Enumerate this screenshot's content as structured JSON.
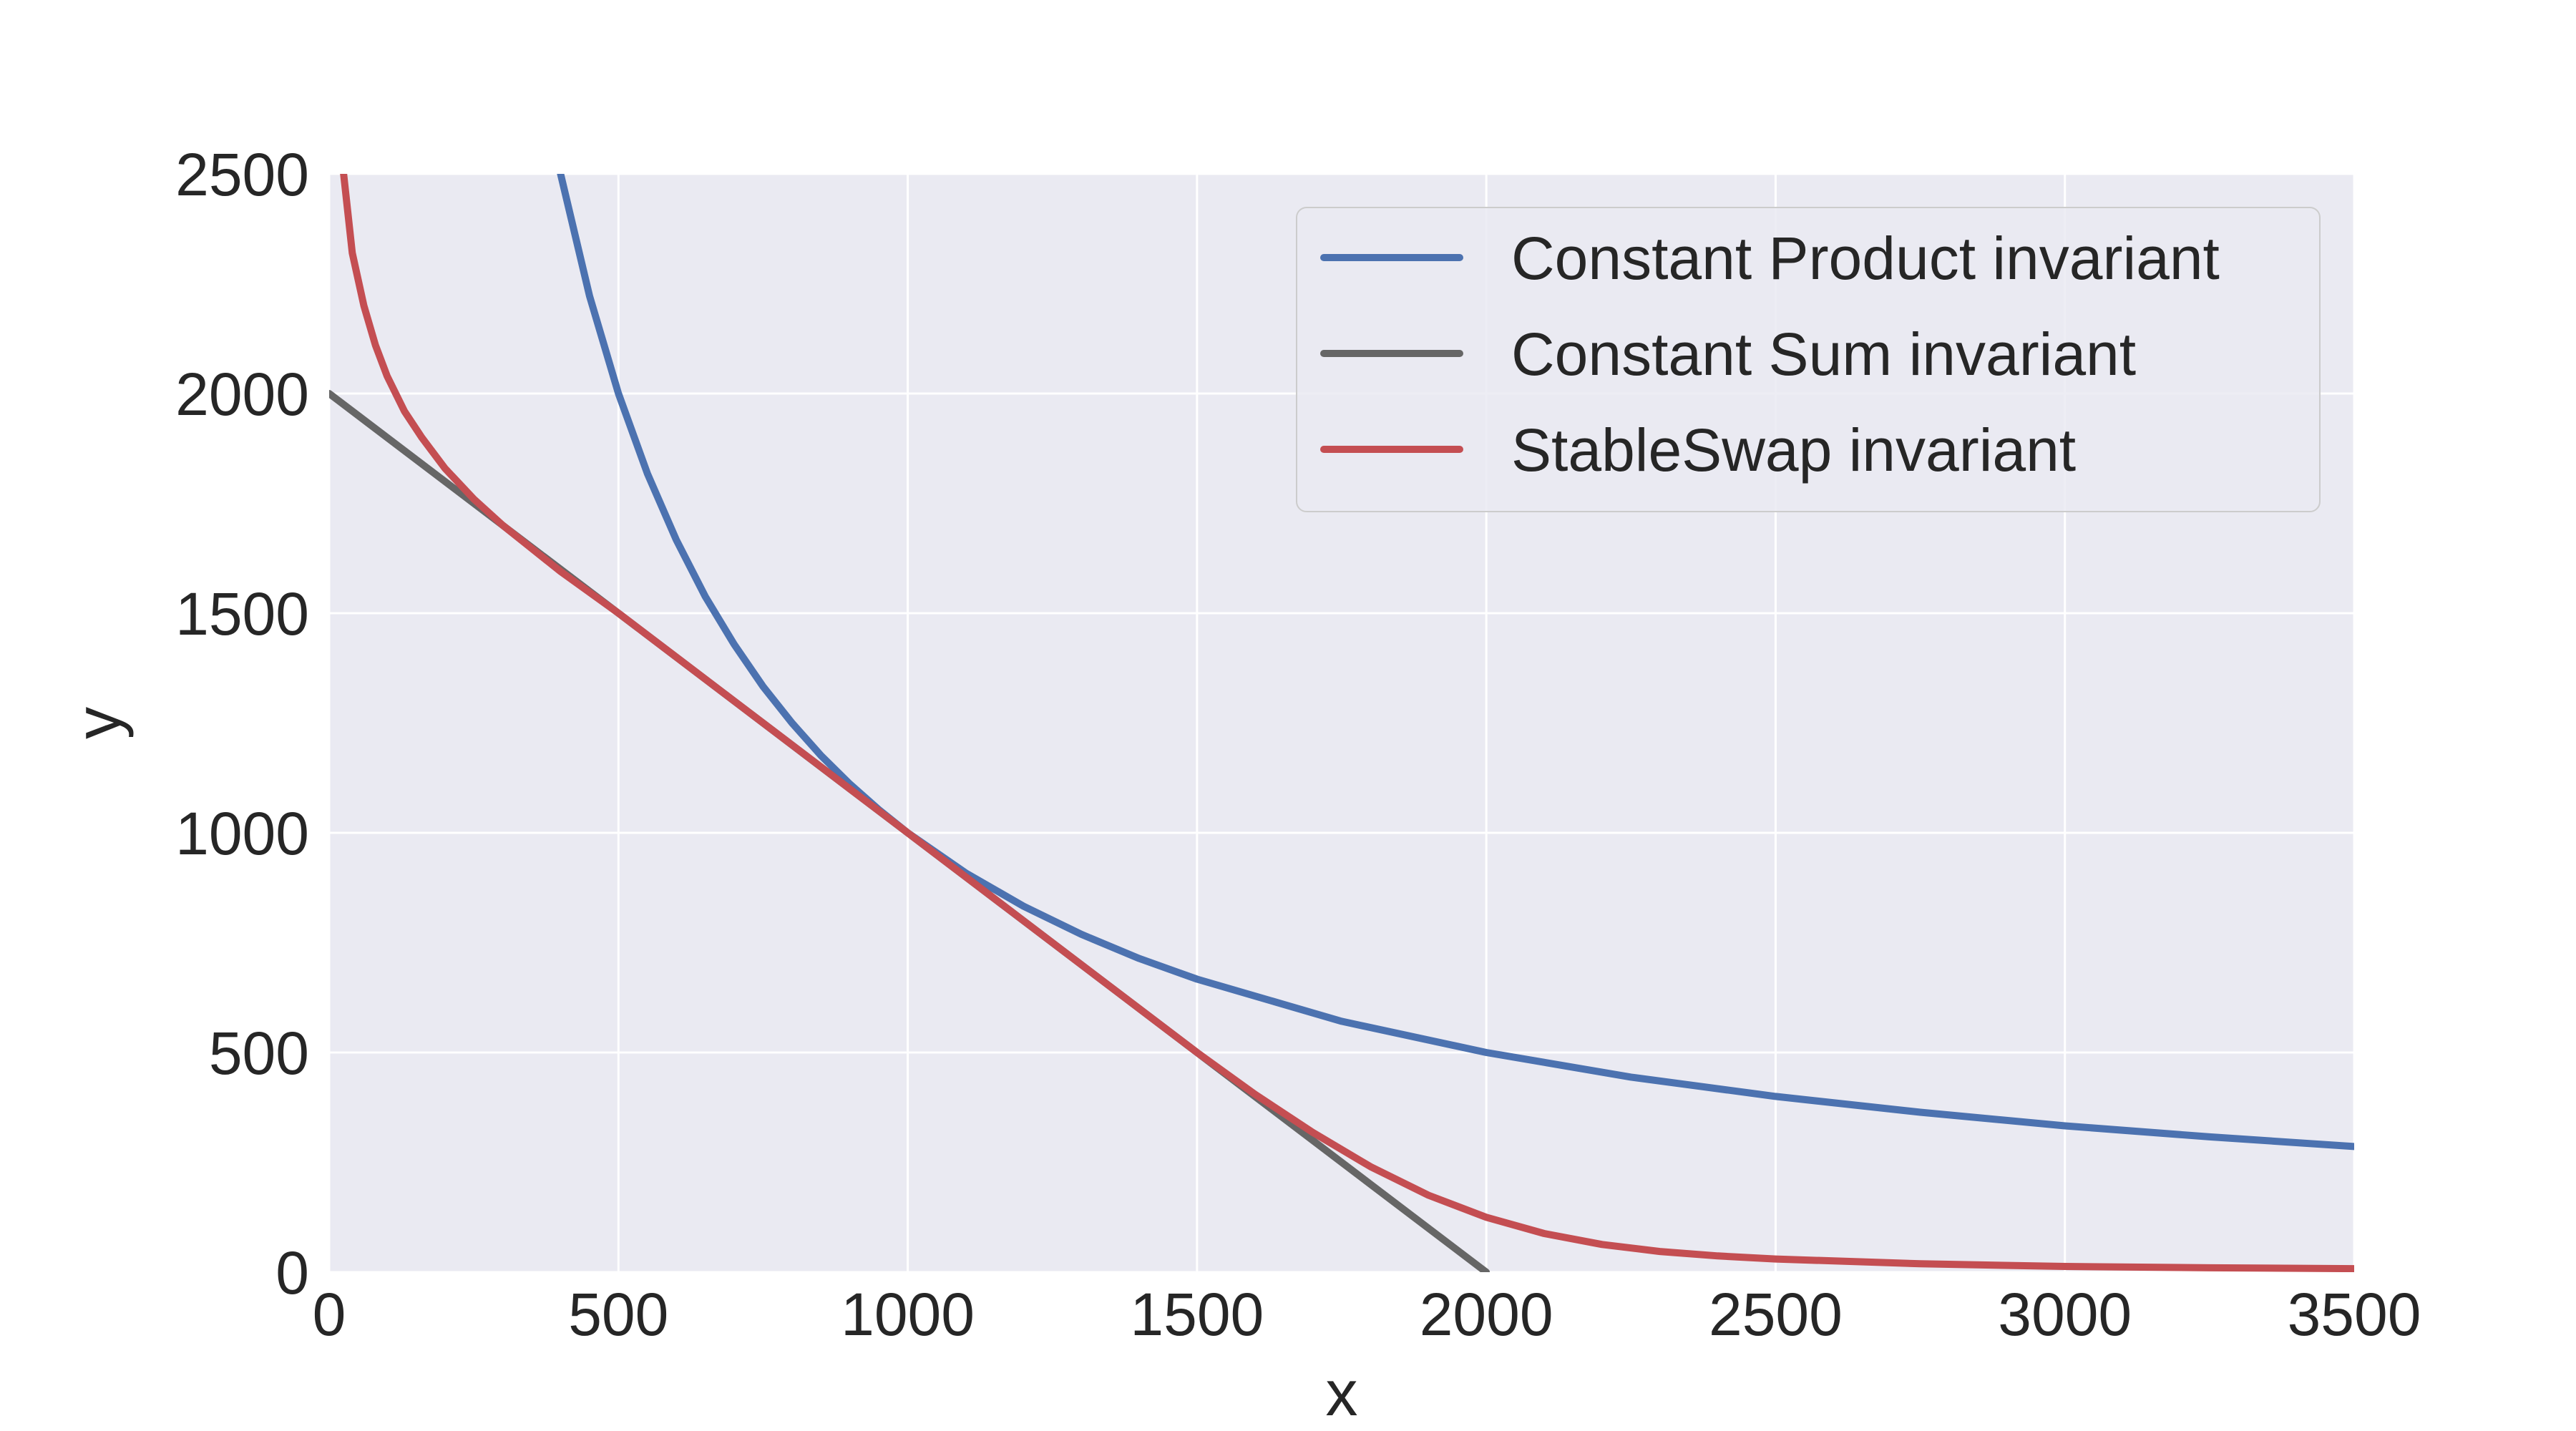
{
  "chart_data": {
    "type": "line",
    "title": "",
    "xlabel": "x",
    "ylabel": "y",
    "xlim": [
      0,
      3500
    ],
    "ylim": [
      0,
      2500
    ],
    "xticks": [
      0,
      500,
      1000,
      1500,
      2000,
      2500,
      3000,
      3500
    ],
    "yticks": [
      0,
      500,
      1000,
      1500,
      2000,
      2500
    ],
    "grid": true,
    "background": "#EAEAF2",
    "legend_position": "top-right",
    "series": [
      {
        "name": "Constant Product invariant",
        "color": "#4C72B0",
        "x": [
          400,
          450,
          500,
          550,
          600,
          650,
          700,
          750,
          800,
          850,
          900,
          950,
          1000,
          1100,
          1200,
          1300,
          1400,
          1500,
          1750,
          2000,
          2250,
          2500,
          2750,
          3000,
          3250,
          3500
        ],
        "y": [
          2500,
          2222,
          2000,
          1818,
          1667,
          1538,
          1429,
          1333,
          1250,
          1176,
          1111,
          1053,
          1000,
          909,
          833,
          769,
          714,
          667,
          571,
          500,
          444,
          400,
          364,
          333,
          308,
          286
        ]
      },
      {
        "name": "Constant Sum invariant",
        "color": "#666666",
        "x": [
          0,
          2000
        ],
        "y": [
          2000,
          0
        ]
      },
      {
        "name": "StableSwap invariant",
        "color": "#C44E52",
        "x": [
          25,
          40,
          60,
          80,
          100,
          130,
          160,
          200,
          250,
          300,
          400,
          500,
          600,
          700,
          800,
          900,
          1000,
          1100,
          1200,
          1300,
          1400,
          1500,
          1600,
          1700,
          1800,
          1900,
          2000,
          2100,
          2200,
          2300,
          2400,
          2500,
          2750,
          3000,
          3250,
          3500
        ],
        "y": [
          2500,
          2320,
          2200,
          2110,
          2040,
          1960,
          1900,
          1830,
          1760,
          1700,
          1595,
          1500,
          1400,
          1300,
          1200,
          1100,
          1000,
          900,
          800,
          700,
          600,
          500,
          405,
          318,
          240,
          175,
          125,
          88,
          63,
          47,
          37,
          30,
          19,
          13,
          10,
          8
        ]
      }
    ]
  }
}
